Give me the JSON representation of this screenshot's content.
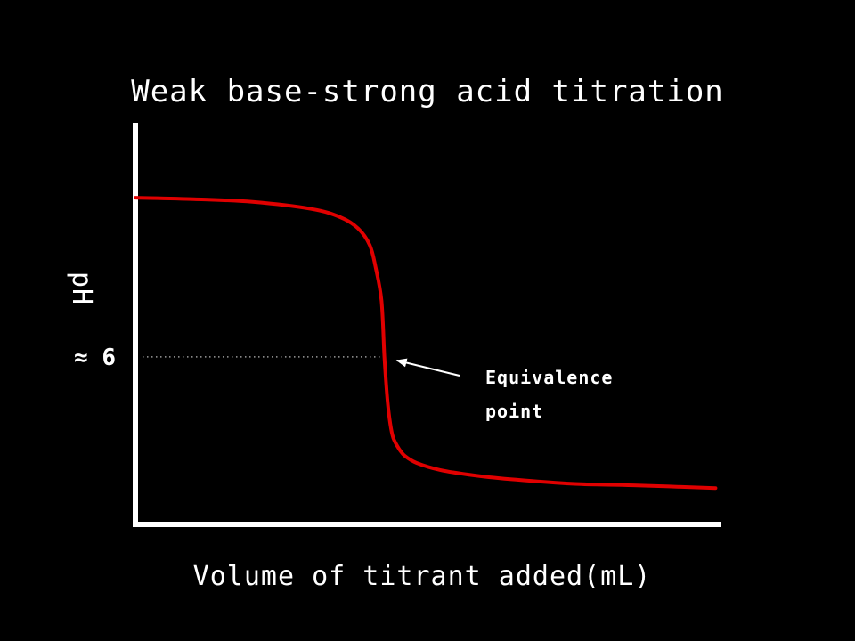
{
  "chart_data": {
    "type": "line",
    "title": "Weak base-strong acid titration",
    "xlabel": "Volume of titrant added(mL)",
    "ylabel": "pH",
    "y_tick": {
      "label": "≈ 6",
      "value": 6
    },
    "grid": false,
    "legend": "none",
    "xlim": [
      0,
      100
    ],
    "ylim": [
      0,
      14
    ],
    "series": [
      {
        "color": "#e00000",
        "x": [
          0,
          10,
          20,
          30,
          35,
          38,
          40,
          41,
          42,
          42.5,
          43,
          43.5,
          44,
          45,
          46,
          48,
          52,
          58,
          65,
          75,
          85,
          99
        ],
        "y": [
          11.7,
          11.65,
          11.55,
          11.3,
          11.0,
          10.6,
          10.0,
          9.2,
          8.0,
          6.0,
          4.5,
          3.6,
          3.1,
          2.7,
          2.45,
          2.2,
          1.95,
          1.75,
          1.6,
          1.45,
          1.4,
          1.3
        ]
      }
    ],
    "reference_line": {
      "style": "dotted",
      "y": 6,
      "x_end": 42.5,
      "color": "#aaaaaa"
    },
    "annotations": [
      {
        "lines": [
          "Equivalence",
          "point"
        ],
        "points_to": {
          "x": 42.5,
          "y": 6
        }
      }
    ]
  }
}
